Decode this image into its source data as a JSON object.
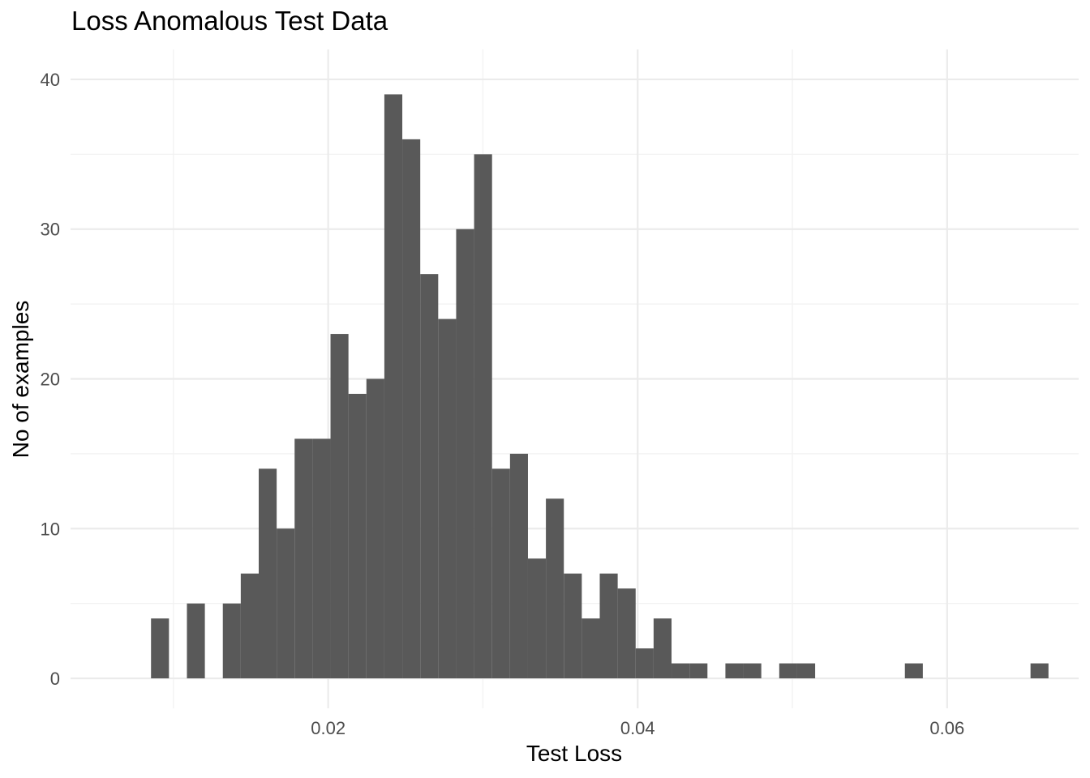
{
  "chart_data": {
    "type": "bar",
    "title": "Loss Anomalous Test Data",
    "xlabel": "Test Loss",
    "ylabel": "No of examples",
    "xlim": [
      0.00335,
      0.0685
    ],
    "ylim": [
      -2,
      42
    ],
    "x_ticks": [
      0.02,
      0.04,
      0.06
    ],
    "x_tick_labels": [
      "0.02",
      "0.04",
      "0.06"
    ],
    "x_minor_ticks": [
      0.01,
      0.03,
      0.05
    ],
    "y_ticks": [
      0,
      10,
      20,
      30,
      40
    ],
    "y_tick_labels": [
      "0",
      "10",
      "20",
      "30",
      "40"
    ],
    "y_minor_ticks": [
      5,
      15,
      25,
      35
    ],
    "grid": true,
    "bin_start": 0.00855,
    "bin_width": 0.00116,
    "bins": 50,
    "values": [
      4,
      0,
      5,
      0,
      5,
      7,
      14,
      10,
      16,
      16,
      23,
      19,
      20,
      39,
      36,
      27,
      24,
      30,
      35,
      14,
      15,
      8,
      12,
      7,
      4,
      7,
      6,
      2,
      4,
      1,
      1,
      0,
      1,
      1,
      0,
      1,
      1,
      0,
      0,
      0,
      0,
      0,
      1,
      0,
      0,
      0,
      0,
      0,
      0,
      1
    ],
    "bar_color": "#595959"
  }
}
